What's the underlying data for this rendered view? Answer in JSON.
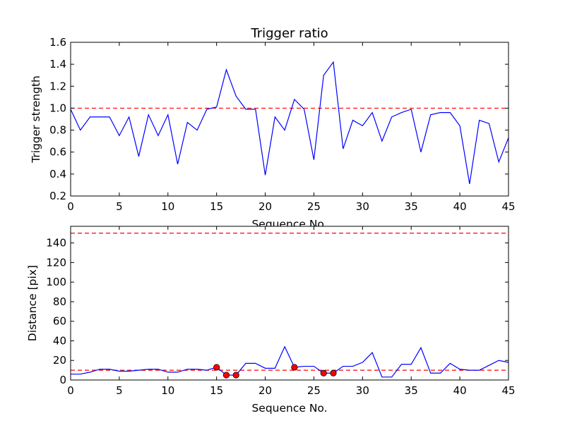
{
  "chart_data": [
    {
      "type": "line",
      "title": "Trigger ratio",
      "xlabel": "Sequence No.",
      "ylabel": "Trigger strength",
      "xlim": [
        0,
        45
      ],
      "ylim": [
        0.2,
        1.6
      ],
      "xticks": [
        "0",
        "5",
        "10",
        "15",
        "20",
        "25",
        "30",
        "35",
        "40",
        "45"
      ],
      "yticks": [
        "0.2",
        "0.4",
        "0.6",
        "0.8",
        "1.0",
        "1.2",
        "1.4",
        "1.6"
      ],
      "threshold": 1.0,
      "series": [
        {
          "name": "trigger strength",
          "color": "#0000ff",
          "x": [
            0,
            1,
            2,
            3,
            4,
            5,
            6,
            7,
            8,
            9,
            10,
            11,
            12,
            13,
            14,
            15,
            16,
            17,
            18,
            19,
            20,
            21,
            22,
            23,
            24,
            25,
            26,
            27,
            28,
            29,
            30,
            31,
            32,
            33,
            34,
            35,
            36,
            37,
            38,
            39,
            40,
            41,
            42,
            43,
            44,
            45
          ],
          "y": [
            0.99,
            0.8,
            0.92,
            0.92,
            0.92,
            0.75,
            0.92,
            0.56,
            0.94,
            0.75,
            0.94,
            0.49,
            0.87,
            0.8,
            0.99,
            1.01,
            1.35,
            1.11,
            0.99,
            0.99,
            0.39,
            0.92,
            0.8,
            1.08,
            0.99,
            0.53,
            1.3,
            1.42,
            0.63,
            0.89,
            0.84,
            0.96,
            0.7,
            0.92,
            0.96,
            0.99,
            0.6,
            0.94,
            0.96,
            0.96,
            0.84,
            0.31,
            0.89,
            0.86,
            0.51,
            0.73
          ]
        }
      ],
      "threshold_color": "#ff0000"
    },
    {
      "type": "line",
      "title": "",
      "xlabel": "Sequence No.",
      "ylabel": "Distance [pix]",
      "xlim": [
        0,
        45
      ],
      "ylim": [
        0,
        157
      ],
      "xticks": [
        "0",
        "5",
        "10",
        "15",
        "20",
        "25",
        "30",
        "35",
        "40",
        "45"
      ],
      "yticks": [
        "0",
        "20",
        "40",
        "60",
        "80",
        "100",
        "120",
        "140"
      ],
      "thresholds": [
        150,
        10
      ],
      "series": [
        {
          "name": "distance",
          "color": "#0000ff",
          "x": [
            0,
            1,
            2,
            3,
            4,
            5,
            6,
            7,
            8,
            9,
            10,
            11,
            12,
            13,
            14,
            15,
            16,
            17,
            18,
            19,
            20,
            21,
            22,
            23,
            24,
            25,
            26,
            27,
            28,
            29,
            30,
            31,
            32,
            33,
            34,
            35,
            36,
            37,
            38,
            39,
            40,
            41,
            42,
            43,
            44,
            45
          ],
          "y": [
            6,
            6,
            8,
            11,
            11,
            9,
            9,
            10,
            11,
            11,
            8,
            8,
            11,
            11,
            10,
            13,
            5,
            5,
            17,
            17,
            12,
            12,
            34,
            13,
            14,
            14,
            7,
            7,
            14,
            14,
            18,
            28,
            3,
            3,
            16,
            16,
            33,
            7,
            7,
            17,
            11,
            10,
            10,
            15,
            20,
            18
          ]
        }
      ],
      "markers": {
        "color": "#ff0000",
        "x": [
          15,
          16,
          17,
          23,
          26,
          27
        ],
        "y": [
          13,
          5,
          5,
          13,
          7,
          7
        ]
      },
      "threshold_color": "#ff0000"
    }
  ]
}
